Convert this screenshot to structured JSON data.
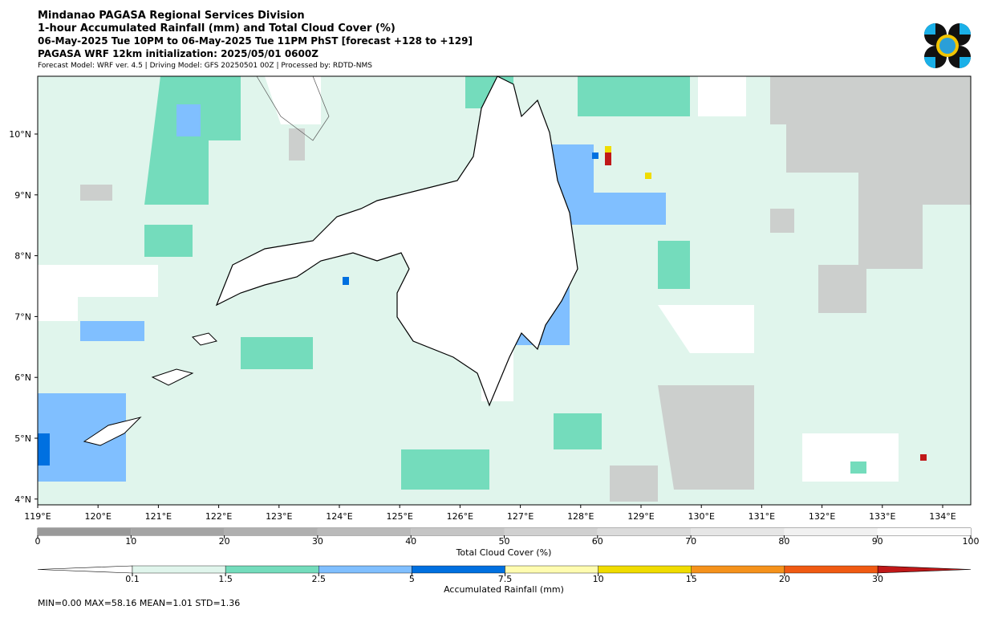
{
  "header": {
    "title": "Mindanao PAGASA Regional Services Division",
    "subtitle": "1-hour Accumulated Rainfall (mm) and Total Cloud Cover (%)",
    "period": "06-May-2025 Tue 10PM to 06-May-2025 Tue 11PM PhST [forecast +128 to +129]",
    "init": "PAGASA WRF 12km initialization: 2025/05/01 0600Z",
    "model": "Forecast Model: WRF ver. 4.5 | Driving Model: GFS 20250501 00Z | Processed by: RDTD-NMS"
  },
  "map": {
    "lon_labels": [
      "119°E",
      "120°E",
      "121°E",
      "122°E",
      "123°E",
      "124°E",
      "125°E",
      "126°E",
      "127°E",
      "128°E",
      "129°E",
      "130°E",
      "131°E",
      "132°E",
      "133°E",
      "134°E"
    ],
    "lat_labels": [
      "10°N",
      "9°N",
      "8°N",
      "7°N",
      "6°N",
      "5°N",
      "4°N"
    ]
  },
  "cloud_bar": {
    "label": "Total Cloud Cover (%)",
    "ticks": [
      0,
      10,
      20,
      30,
      40,
      50,
      60,
      70,
      80,
      90,
      100
    ]
  },
  "rain_bar": {
    "label": "Accumulated Rainfall (mm)",
    "ticks": [
      0.1,
      1.5,
      2.5,
      5,
      7.5,
      10,
      15,
      20,
      30
    ]
  },
  "stats": "MIN=0.00   MAX=58.16   MEAN=1.01   STD=1.36"
}
